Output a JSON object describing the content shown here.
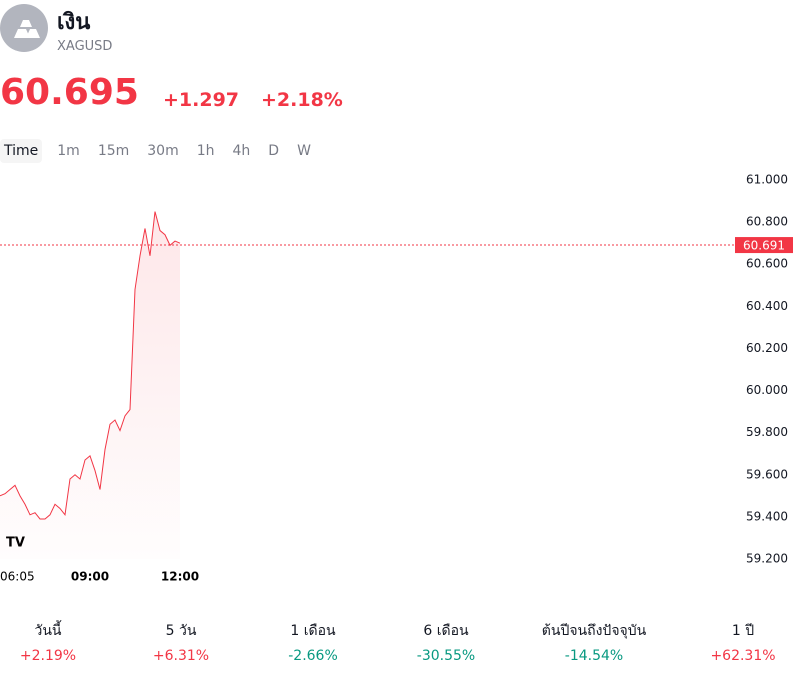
{
  "header": {
    "name": "เงิน",
    "symbol": "XAGUSD"
  },
  "quote": {
    "price": "60.695",
    "change": "+1.297",
    "change_percent": "+2.18%"
  },
  "tabs": [
    "Time",
    "1m",
    "15m",
    "30m",
    "1h",
    "4h",
    "D",
    "W"
  ],
  "chart_data": {
    "type": "line",
    "categories": [
      "06:05",
      null,
      null,
      null,
      null,
      null,
      null,
      null,
      null,
      null,
      null,
      null,
      null,
      null,
      null,
      null,
      null,
      null,
      "09:00",
      null,
      null,
      null,
      null,
      null,
      null,
      null,
      null,
      null,
      null,
      null,
      null,
      null,
      null,
      null,
      null,
      null,
      "12:00"
    ],
    "series": [
      {
        "color": "#f23645",
        "values": [
          59.5,
          59.51,
          59.53,
          59.55,
          59.5,
          59.46,
          59.41,
          59.42,
          59.39,
          59.39,
          59.41,
          59.46,
          59.44,
          59.41,
          59.58,
          59.6,
          59.58,
          59.67,
          59.69,
          59.62,
          59.53,
          59.72,
          59.84,
          59.86,
          59.81,
          59.88,
          59.91,
          60.48,
          60.64,
          60.77,
          60.64,
          60.85,
          60.76,
          60.74,
          60.69,
          60.71,
          60.7
        ]
      }
    ],
    "ylim": [
      59.2,
      61.0
    ],
    "yticks": [
      {
        "value": 59.2,
        "label": "59.200"
      },
      {
        "value": 59.4,
        "label": "59.400"
      },
      {
        "value": 59.6,
        "label": "59.600"
      },
      {
        "value": 59.8,
        "label": "59.800"
      },
      {
        "value": 60.0,
        "label": "60.000"
      },
      {
        "value": 60.2,
        "label": "60.200"
      },
      {
        "value": 60.4,
        "label": "60.400"
      },
      {
        "value": 60.6,
        "label": "60.600"
      },
      {
        "value": 60.8,
        "label": "60.800"
      },
      {
        "value": 61.0,
        "label": "61.000"
      }
    ],
    "last_price": {
      "value": 60.691,
      "label": "60.691"
    },
    "grid": false
  },
  "performance": [
    {
      "period": "วันนี้",
      "value": "+2.19%"
    },
    {
      "period": "5 วัน",
      "value": "+6.31%"
    },
    {
      "period": "1 เดือน",
      "value": "-2.66%"
    },
    {
      "period": "6 เดือน",
      "value": "-30.55%"
    },
    {
      "period": "ต้นปีจนถึงปัจจุบัน",
      "value": "-14.54%"
    },
    {
      "period": "1 ปี",
      "value": "+62.31%"
    }
  ]
}
